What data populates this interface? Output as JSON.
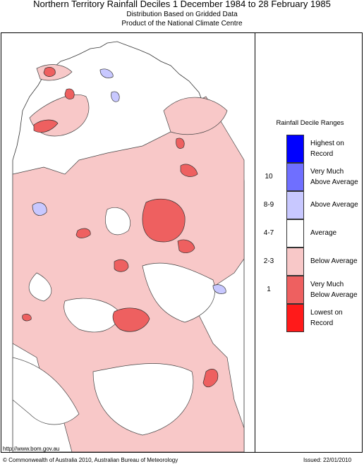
{
  "header": {
    "title": "Northern Territory Rainfall Deciles     1 December 1984 to 28 February 1985",
    "line2": "Distribution Based on Gridded Data",
    "line3": "Product of the National Climate Centre"
  },
  "legend": {
    "title": "Rainfall Decile Ranges",
    "items": [
      {
        "decile": "",
        "label": "Highest on Record",
        "color": "#0000ff"
      },
      {
        "decile": "10",
        "label": "Very Much Above Average",
        "color": "#6f6fff"
      },
      {
        "decile": "8-9",
        "label": "Above Average",
        "color": "#c8c8ff"
      },
      {
        "decile": "4-7",
        "label": "Average",
        "color": "#ffffff"
      },
      {
        "decile": "2-3",
        "label": "Below Average",
        "color": "#f8c8c8"
      },
      {
        "decile": "1",
        "label": "Very Much Below Average",
        "color": "#ee6060"
      },
      {
        "decile": "",
        "label": "Lowest on Record",
        "color": "#ff1a1a"
      }
    ]
  },
  "footer": {
    "url": "http://www.bom.gov.au",
    "copyright": "© Commonwealth of Australia 2010, Australian Bureau of Meteorology",
    "issued": "Issued: 22/01/2010"
  }
}
